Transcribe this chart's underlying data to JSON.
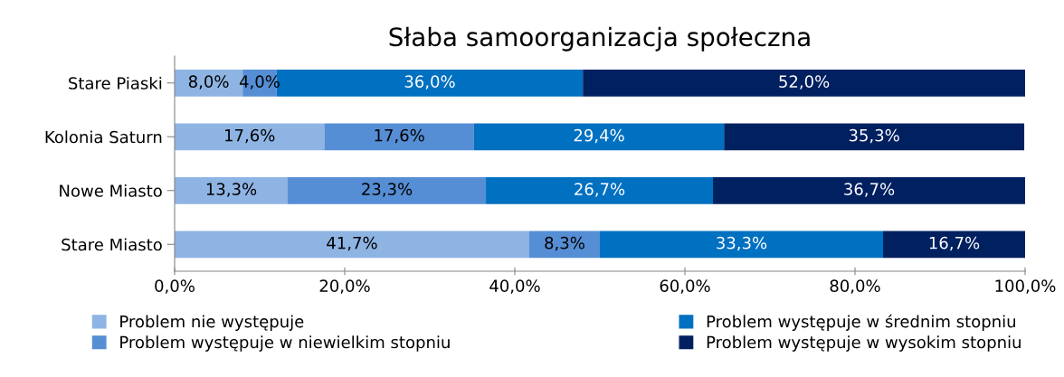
{
  "chart_data": {
    "type": "bar",
    "orientation": "horizontal",
    "stacked": true,
    "title": "Słaba samoorganizacja społeczna",
    "categories": [
      "Stare Piaski",
      "Kolonia Saturn",
      "Nowe Miasto",
      "Stare Miasto"
    ],
    "series": [
      {
        "name": "Problem nie występuje",
        "color": "#8eb4e3",
        "values": [
          8.0,
          17.6,
          13.3,
          41.7
        ],
        "value_labels": [
          "8,0%",
          "17,6%",
          "13,3%",
          "41,7%"
        ]
      },
      {
        "name": "Problem występuje w niewielkim stopniu",
        "color": "#558ed5",
        "values": [
          4.0,
          17.6,
          23.3,
          8.3
        ],
        "value_labels": [
          "4,0%",
          "17,6%",
          "23,3%",
          "8,3%"
        ]
      },
      {
        "name": "Problem występuje w średnim stopniu",
        "color": "#0070c0",
        "values": [
          36.0,
          29.4,
          26.7,
          33.3
        ],
        "value_labels": [
          "36,0%",
          "29,4%",
          "26,7%",
          "33,3%"
        ]
      },
      {
        "name": "Problem występuje w wysokim stopniu",
        "color": "#002060",
        "values": [
          52.0,
          35.3,
          36.7,
          16.7
        ],
        "value_labels": [
          "52,0%",
          "35,3%",
          "36,7%",
          "16,7%"
        ]
      }
    ],
    "xlim": [
      0,
      100
    ],
    "xticks": [
      {
        "value": 0,
        "label": "0,0%"
      },
      {
        "value": 20,
        "label": "20,0%"
      },
      {
        "value": 40,
        "label": "40,0%"
      },
      {
        "value": 60,
        "label": "60,0%"
      },
      {
        "value": 80,
        "label": "80,0%"
      },
      {
        "value": 100,
        "label": "100,0%"
      }
    ],
    "legend": "bottom",
    "grid": false
  }
}
